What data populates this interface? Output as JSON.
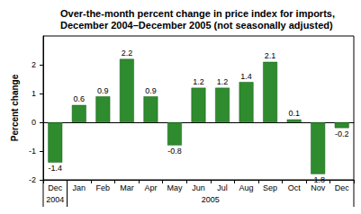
{
  "chart_data": {
    "type": "bar",
    "title": "Over-the-month percent change in price index for imports, December 2004–December 2005 (not seasonally adjusted)",
    "y_label": "Percent change",
    "categories": [
      "Dec",
      "Jan",
      "Feb",
      "Mar",
      "Apr",
      "May",
      "Jun",
      "Jul",
      "Aug",
      "Sep",
      "Oct",
      "Nov",
      "Dec"
    ],
    "year_groups": [
      {
        "label": "2004",
        "start": 0,
        "end": 0
      },
      {
        "label": "2005",
        "start": 1,
        "end": 12
      }
    ],
    "values": [
      -1.4,
      0.6,
      0.9,
      2.2,
      0.9,
      -0.8,
      1.2,
      1.2,
      1.4,
      2.1,
      0.1,
      -1.8,
      -0.2
    ],
    "color": "#2e8b2e",
    "ylim": [
      -2,
      3
    ],
    "yticks": [
      -2,
      -1,
      0,
      1,
      2
    ],
    "grid": false,
    "data_labels": true
  }
}
